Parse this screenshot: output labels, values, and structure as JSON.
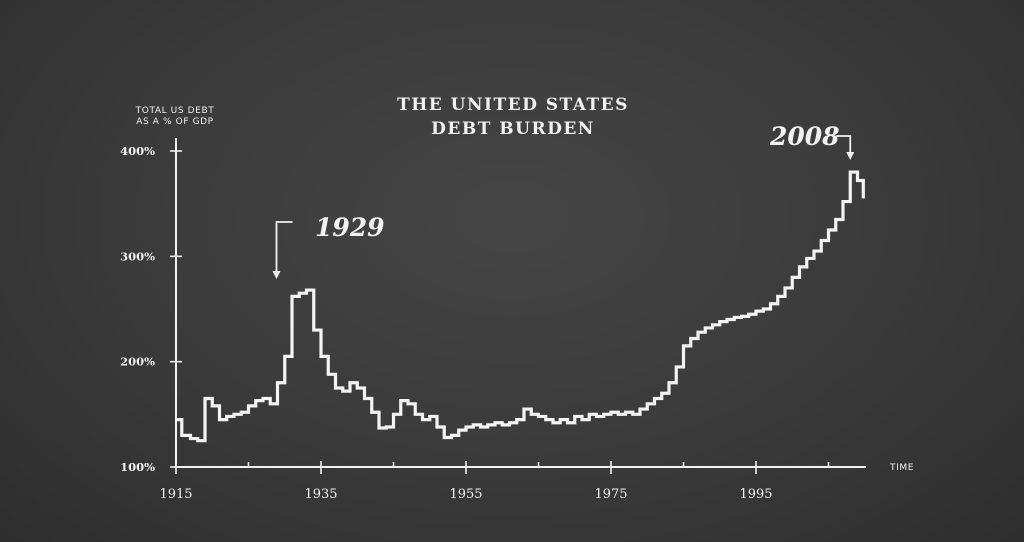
{
  "chart_data": {
    "type": "line",
    "title_line1": "THE UNITED STATES",
    "title_line2": "DEBT BURDEN",
    "ylabel_line1": "TOTAL US DEBT",
    "ylabel_line2": "AS A % OF GDP",
    "xlabel": "TIME",
    "ylim": [
      100,
      400
    ],
    "xlim": [
      1915,
      2010
    ],
    "y_ticks": [
      {
        "value": 100,
        "label": "100%"
      },
      {
        "value": 200,
        "label": "200%"
      },
      {
        "value": 300,
        "label": "300%"
      },
      {
        "value": 400,
        "label": "400%"
      }
    ],
    "x_ticks": [
      {
        "value": 1915,
        "label": "1915"
      },
      {
        "value": 1935,
        "label": "1935"
      },
      {
        "value": 1955,
        "label": "1955"
      },
      {
        "value": 1975,
        "label": "1975"
      },
      {
        "value": 1995,
        "label": "1995"
      }
    ],
    "series": [
      {
        "points": [
          [
            1915,
            145
          ],
          [
            1915.8,
            130
          ],
          [
            1917,
            127
          ],
          [
            1918,
            125
          ],
          [
            1919,
            165
          ],
          [
            1920,
            158
          ],
          [
            1921,
            145
          ],
          [
            1922,
            148
          ],
          [
            1923,
            150
          ],
          [
            1924,
            152
          ],
          [
            1925,
            158
          ],
          [
            1926,
            163
          ],
          [
            1927,
            165
          ],
          [
            1928,
            160
          ],
          [
            1929,
            180
          ],
          [
            1930,
            205
          ],
          [
            1931,
            262
          ],
          [
            1932,
            265
          ],
          [
            1933,
            268
          ],
          [
            1934,
            230
          ],
          [
            1935,
            205
          ],
          [
            1936,
            188
          ],
          [
            1937,
            175
          ],
          [
            1938,
            172
          ],
          [
            1939,
            180
          ],
          [
            1940,
            175
          ],
          [
            1941,
            165
          ],
          [
            1942,
            152
          ],
          [
            1943,
            137
          ],
          [
            1944,
            138
          ],
          [
            1945,
            150
          ],
          [
            1946,
            163
          ],
          [
            1947,
            160
          ],
          [
            1948,
            150
          ],
          [
            1949,
            145
          ],
          [
            1950,
            148
          ],
          [
            1951,
            138
          ],
          [
            1952,
            128
          ],
          [
            1953,
            130
          ],
          [
            1954,
            135
          ],
          [
            1955,
            138
          ],
          [
            1956,
            140
          ],
          [
            1957,
            138
          ],
          [
            1958,
            140
          ],
          [
            1959,
            142
          ],
          [
            1960,
            140
          ],
          [
            1961,
            142
          ],
          [
            1962,
            145
          ],
          [
            1963,
            155
          ],
          [
            1964,
            150
          ],
          [
            1965,
            148
          ],
          [
            1966,
            145
          ],
          [
            1967,
            142
          ],
          [
            1968,
            145
          ],
          [
            1969,
            142
          ],
          [
            1970,
            148
          ],
          [
            1971,
            145
          ],
          [
            1972,
            150
          ],
          [
            1973,
            148
          ],
          [
            1974,
            150
          ],
          [
            1975,
            152
          ],
          [
            1976,
            150
          ],
          [
            1977,
            152
          ],
          [
            1978,
            150
          ],
          [
            1979,
            155
          ],
          [
            1980,
            160
          ],
          [
            1981,
            165
          ],
          [
            1982,
            170
          ],
          [
            1983,
            180
          ],
          [
            1984,
            195
          ],
          [
            1985,
            215
          ],
          [
            1986,
            222
          ],
          [
            1987,
            228
          ],
          [
            1988,
            232
          ],
          [
            1989,
            235
          ],
          [
            1990,
            238
          ],
          [
            1991,
            240
          ],
          [
            1992,
            242
          ],
          [
            1993,
            243
          ],
          [
            1994,
            245
          ],
          [
            1995,
            248
          ],
          [
            1996,
            250
          ],
          [
            1997,
            255
          ],
          [
            1998,
            262
          ],
          [
            1999,
            270
          ],
          [
            2000,
            280
          ],
          [
            2001,
            290
          ],
          [
            2002,
            298
          ],
          [
            2003,
            305
          ],
          [
            2004,
            315
          ],
          [
            2005,
            325
          ],
          [
            2006,
            335
          ],
          [
            2007,
            352
          ],
          [
            2008,
            380
          ],
          [
            2009,
            372
          ],
          [
            2009.8,
            355
          ]
        ]
      }
    ],
    "annotations": [
      {
        "label": "1929",
        "x": 1929
      },
      {
        "label": "2008",
        "x": 2008
      }
    ],
    "grid": false,
    "legend": "none"
  }
}
